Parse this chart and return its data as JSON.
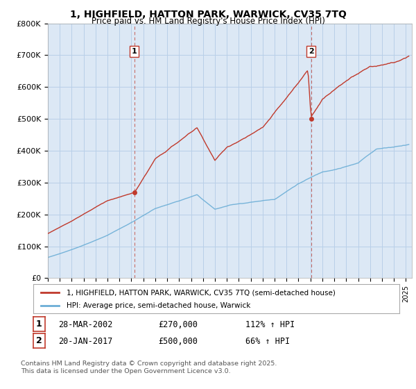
{
  "title1": "1, HIGHFIELD, HATTON PARK, WARWICK, CV35 7TQ",
  "title2": "Price paid vs. HM Land Registry's House Price Index (HPI)",
  "legend_red": "1, HIGHFIELD, HATTON PARK, WARWICK, CV35 7TQ (semi-detached house)",
  "legend_blue": "HPI: Average price, semi-detached house, Warwick",
  "sale1_label": "1",
  "sale1_date": "28-MAR-2002",
  "sale1_price": "£270,000",
  "sale1_hpi": "112% ↑ HPI",
  "sale1_year": 2002.24,
  "sale1_value": 270000,
  "sale2_label": "2",
  "sale2_date": "20-JAN-2017",
  "sale2_price": "£500,000",
  "sale2_hpi": "66% ↑ HPI",
  "sale2_year": 2017.05,
  "sale2_value": 500000,
  "footer": "Contains HM Land Registry data © Crown copyright and database right 2025.\nThis data is licensed under the Open Government Licence v3.0.",
  "hpi_color": "#6baed6",
  "price_color": "#c0392b",
  "vline_color": "#c0392b",
  "bg_color": "#dce8f5",
  "grid_color": "#b8cfe8",
  "ylim": [
    0,
    800000
  ],
  "yticks": [
    0,
    100000,
    200000,
    300000,
    400000,
    500000,
    600000,
    700000,
    800000
  ],
  "xmin": 1995,
  "xmax": 2025.5
}
